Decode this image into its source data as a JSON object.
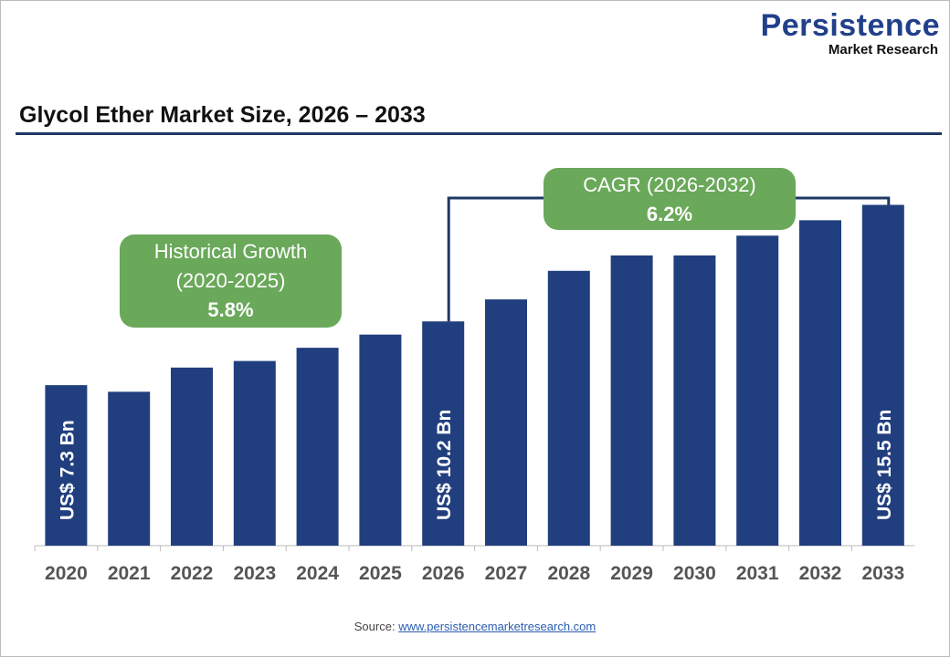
{
  "logo": {
    "line1": "Persistence",
    "line2": "Market Research"
  },
  "chart_data": {
    "type": "bar",
    "title": "Glycol Ether Market Size, 2026 – 2033",
    "categories": [
      "2020",
      "2021",
      "2022",
      "2023",
      "2024",
      "2025",
      "2026",
      "2027",
      "2028",
      "2029",
      "2030",
      "2031",
      "2032",
      "2033"
    ],
    "values": [
      7.3,
      7.0,
      8.1,
      8.4,
      9.0,
      9.6,
      10.2,
      11.2,
      12.5,
      13.2,
      13.2,
      14.1,
      14.8,
      15.5
    ],
    "ylim": [
      0,
      16.6
    ],
    "bar_color": "#213f7e",
    "data_labels": {
      "0": "US$ 7.3 Bn",
      "6": "US$ 10.2 Bn",
      "13": "US$ 15.5 Bn"
    },
    "annotations": {
      "historical": {
        "line1": "Historical Growth",
        "line2": "(2020-2025)",
        "value": "5.8%"
      },
      "cagr": {
        "line1": "CAGR (2026-2032)",
        "value": "6.2%"
      }
    },
    "annotation_color": "#6aa85a"
  },
  "source": {
    "label": "Source:",
    "link": "www.persistencemarketresearch.com"
  }
}
